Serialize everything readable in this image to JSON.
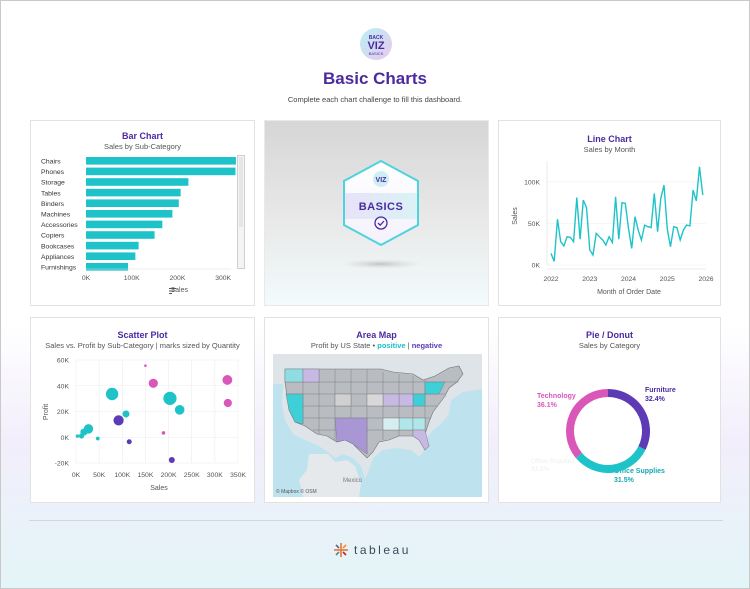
{
  "header": {
    "logo_text": "BACK VIZ BASICS",
    "title": "Basic Charts",
    "subtitle": "Complete each chart challenge to fill this dashboard."
  },
  "colors": {
    "title_purple": "#4b2aa0",
    "teal": "#1ec3c9",
    "pink": "#d957b8",
    "purple": "#5c3bb5"
  },
  "badge": {
    "label": "BASICS",
    "icon": "check-circle-icon"
  },
  "bar_chart": {
    "title": "Bar Chart",
    "subtitle": "Sales by Sub-Category",
    "xlabel": "Sales",
    "sort_icon": "sort-icon"
  },
  "line_chart": {
    "title": "Line Chart",
    "subtitle": "Sales by Month",
    "ylabel": "Sales",
    "xlabel": "Month of Order Date"
  },
  "scatter": {
    "title": "Scatter Plot",
    "subtitle": "Sales vs. Profit by Sub-Category | marks sized by Quantity",
    "xlabel": "Sales",
    "ylabel": "Profit"
  },
  "map": {
    "title": "Area Map",
    "subtitle_prefix": "Profit by US State  •  ",
    "positive": "positive",
    "sep": " | ",
    "negative": "negative",
    "place_label": "Mexico",
    "credit": "© Mapbox © OSM"
  },
  "donut": {
    "title": "Pie / Donut",
    "subtitle": "Sales by Category",
    "labels": {
      "technology": "Technology",
      "technology_pct": "36.1%",
      "furniture": "Furniture",
      "furniture_pct": "32.4%",
      "office": "Office Supplies",
      "office_pct": "31.5%",
      "office_ghost": "Office Supplies",
      "office_ghost_pct": "31.5%"
    }
  },
  "footer": {
    "brand": "tableau",
    "logo_icon": "tableau-logo-icon"
  },
  "chart_data": [
    {
      "type": "bar",
      "title": "Bar Chart",
      "categories": [
        "Chairs",
        "Phones",
        "Storage",
        "Tables",
        "Binders",
        "Machines",
        "Accessories",
        "Copiers",
        "Bookcases",
        "Appliances",
        "Furnishings"
      ],
      "values": [
        328000,
        327000,
        224000,
        207000,
        203000,
        189000,
        167000,
        150000,
        115000,
        108000,
        92000
      ],
      "xlabel": "Sales",
      "xlim": [
        0,
        350000
      ],
      "xticks": [
        0,
        100000,
        200000,
        300000
      ],
      "xtick_labels": [
        "0K",
        "100K",
        "200K",
        "300K"
      ]
    },
    {
      "type": "line",
      "title": "Line Chart",
      "x": [
        "2022-01",
        "2022-02",
        "2022-03",
        "2022-04",
        "2022-05",
        "2022-06",
        "2022-07",
        "2022-08",
        "2022-09",
        "2022-10",
        "2022-11",
        "2022-12",
        "2023-01",
        "2023-02",
        "2023-03",
        "2023-04",
        "2023-05",
        "2023-06",
        "2023-07",
        "2023-08",
        "2023-09",
        "2023-10",
        "2023-11",
        "2023-12",
        "2024-01",
        "2024-02",
        "2024-03",
        "2024-04",
        "2024-05",
        "2024-06",
        "2024-07",
        "2024-08",
        "2024-09",
        "2024-10",
        "2024-11",
        "2024-12",
        "2025-01",
        "2025-02",
        "2025-03",
        "2025-04",
        "2025-05",
        "2025-06",
        "2025-07",
        "2025-08",
        "2025-09",
        "2025-10",
        "2025-11",
        "2025-12"
      ],
      "values": [
        14000,
        4500,
        55000,
        28000,
        23000,
        34000,
        33000,
        28000,
        81000,
        31000,
        78000,
        69000,
        18000,
        12000,
        38000,
        34000,
        30000,
        24000,
        34000,
        27000,
        82000,
        31000,
        75000,
        74000,
        44000,
        20000,
        58000,
        42000,
        30000,
        48000,
        46000,
        45000,
        86000,
        40000,
        80000,
        96000,
        43000,
        22000,
        46000,
        45000,
        30000,
        42000,
        48000,
        47000,
        90000,
        77000,
        118000,
        84000
      ],
      "xlabel": "Month of Order Date",
      "ylabel": "Sales",
      "ylim": [
        0,
        125000
      ],
      "yticks": [
        0,
        50000,
        100000
      ],
      "ytick_labels": [
        "0K",
        "50K",
        "100K"
      ],
      "xtick_labels": [
        "2022",
        "2023",
        "2024",
        "2025",
        "2026"
      ]
    },
    {
      "type": "scatter",
      "title": "Scatter Plot",
      "points": [
        {
          "x": 328000,
          "y": 26600,
          "q": 2356,
          "color": "#d957b8"
        },
        {
          "x": 327000,
          "y": 44500,
          "q": 3289,
          "color": "#d957b8"
        },
        {
          "x": 224000,
          "y": 21300,
          "q": 3158,
          "color": "#1ec3c9"
        },
        {
          "x": 207000,
          "y": -17700,
          "q": 1241,
          "color": "#5c3bb5"
        },
        {
          "x": 203000,
          "y": 30200,
          "q": 5974,
          "color": "#1ec3c9"
        },
        {
          "x": 189000,
          "y": 3400,
          "q": 440,
          "color": "#d957b8"
        },
        {
          "x": 167000,
          "y": 41900,
          "q": 2976,
          "color": "#d957b8"
        },
        {
          "x": 150000,
          "y": 55600,
          "q": 234,
          "color": "#d957b8"
        },
        {
          "x": 115000,
          "y": -3500,
          "q": 868,
          "color": "#5c3bb5"
        },
        {
          "x": 108000,
          "y": 18100,
          "q": 1729,
          "color": "#1ec3c9"
        },
        {
          "x": 92000,
          "y": 13100,
          "q": 3563,
          "color": "#5c3bb5"
        },
        {
          "x": 78000,
          "y": 33600,
          "q": 5400,
          "color": "#1ec3c9"
        },
        {
          "x": 27000,
          "y": 6500,
          "q": 3000,
          "color": "#1ec3c9"
        },
        {
          "x": 17000,
          "y": 4000,
          "q": 1700,
          "color": "#1ec3c9"
        },
        {
          "x": 12000,
          "y": 1000,
          "q": 900,
          "color": "#1ec3c9"
        },
        {
          "x": 47000,
          "y": -1000,
          "q": 500,
          "color": "#1ec3c9"
        },
        {
          "x": 3000,
          "y": 900,
          "q": 400,
          "color": "#1ec3c9"
        }
      ],
      "xlabel": "Sales",
      "ylabel": "Profit",
      "xlim": [
        0,
        350000
      ],
      "ylim": [
        -20000,
        60000
      ],
      "xticks": [
        0,
        50000,
        100000,
        150000,
        200000,
        250000,
        300000,
        350000
      ],
      "xtick_labels": [
        "0K",
        "50K",
        "100K",
        "150K",
        "200K",
        "250K",
        "300K",
        "350K"
      ],
      "yticks": [
        -20000,
        0,
        20000,
        40000,
        60000
      ],
      "ytick_labels": [
        "-20K",
        "0K",
        "20K",
        "40K",
        "60K"
      ],
      "grid": true
    },
    {
      "type": "pie",
      "title": "Pie / Donut",
      "categories": [
        "Furniture",
        "Office Supplies",
        "Technology"
      ],
      "values": [
        32.4,
        31.5,
        36.1
      ],
      "colors": [
        "#5c3bb5",
        "#1ec3c9",
        "#d957b8"
      ]
    }
  ]
}
